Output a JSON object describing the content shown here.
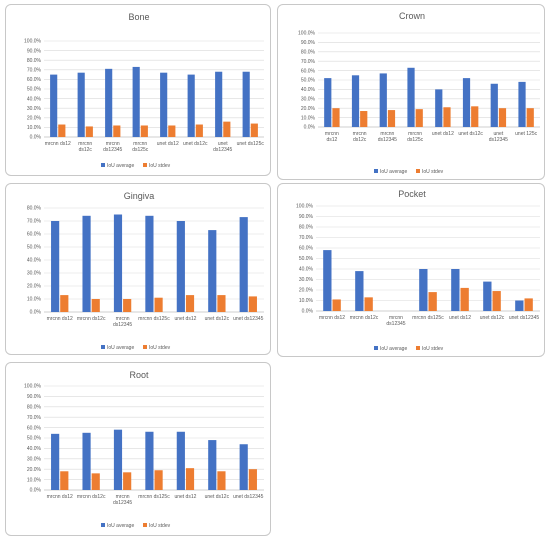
{
  "legend": {
    "avg_label": "IoU average",
    "std_label": "IoU stdev"
  },
  "colors": {
    "avg": "#4472c4",
    "std": "#ed7d31"
  },
  "chart_data": [
    {
      "type": "bar",
      "title": "Bone",
      "categories": [
        [
          "mrcnn ds12"
        ],
        [
          "mrcnn",
          "ds12c"
        ],
        [
          "mrcnn",
          "ds12345"
        ],
        [
          "mrcnn",
          "ds125c"
        ],
        [
          "unet ds12"
        ],
        [
          "unet ds12c"
        ],
        [
          "unet",
          "ds12345"
        ],
        [
          "unet ds125c"
        ]
      ],
      "series": [
        {
          "name": "IoU average",
          "values": [
            65,
            67,
            71,
            73,
            67,
            65,
            68,
            68
          ]
        },
        {
          "name": "IoU stdev",
          "values": [
            13,
            11,
            12,
            12,
            12,
            13,
            16,
            14
          ]
        }
      ],
      "ylim": [
        0,
        100
      ],
      "yticks": [
        "0.0%",
        "10.0%",
        "20.0%",
        "30.0%",
        "40.0%",
        "50.0%",
        "60.0%",
        "70.0%",
        "80.0%",
        "90.0%",
        "100.0%"
      ],
      "grid": true,
      "legend_position": "bottom"
    },
    {
      "type": "bar",
      "title": "Crown",
      "categories": [
        [
          "mrcnn",
          "ds12"
        ],
        [
          "mrcnn",
          "ds12c"
        ],
        [
          "mrcnn",
          "ds12345"
        ],
        [
          "mrcnn",
          "ds125c"
        ],
        [
          "unet ds12"
        ],
        [
          "unet ds12c"
        ],
        [
          "unet",
          "ds12345"
        ],
        [
          "unet 125c"
        ]
      ],
      "series": [
        {
          "name": "IoU average",
          "values": [
            52,
            55,
            57,
            63,
            40,
            52,
            46,
            48
          ]
        },
        {
          "name": "IoU stdev",
          "values": [
            20,
            17,
            18,
            19,
            21,
            22,
            20,
            20
          ]
        }
      ],
      "ylim": [
        0,
        100
      ],
      "yticks": [
        "0.0%",
        "10.0%",
        "20.0%",
        "30.0%",
        "40.0%",
        "50.0%",
        "60.0%",
        "70.0%",
        "80.0%",
        "90.0%",
        "100.0%"
      ],
      "grid": true,
      "legend_position": "bottom"
    },
    {
      "type": "bar",
      "title": "Gingiva",
      "categories": [
        [
          "mrcnn ds12"
        ],
        [
          "mrcnn ds12c"
        ],
        [
          "mrcnn",
          "ds12345"
        ],
        [
          "mrcnn ds125c"
        ],
        [
          "unet ds12"
        ],
        [
          "unet ds12c"
        ],
        [
          "unet ds12345"
        ]
      ],
      "series": [
        {
          "name": "IoU average",
          "values": [
            70,
            74,
            75,
            74,
            70,
            63,
            73
          ]
        },
        {
          "name": "IoU stdev",
          "values": [
            13,
            10,
            10,
            11,
            13,
            13,
            12
          ]
        }
      ],
      "ylim": [
        0,
        80
      ],
      "yticks": [
        "0.0%",
        "10.0%",
        "20.0%",
        "30.0%",
        "40.0%",
        "50.0%",
        "60.0%",
        "70.0%",
        "80.0%"
      ],
      "grid": true,
      "legend_position": "bottom"
    },
    {
      "type": "bar",
      "title": "Pocket",
      "categories": [
        [
          "mrcnn ds12"
        ],
        [
          "mrcnn ds12c"
        ],
        [
          "mrcnn",
          "ds12345"
        ],
        [
          "mrcnn ds125c"
        ],
        [
          "unet ds12"
        ],
        [
          "unet ds12c"
        ],
        [
          "unet ds12345"
        ]
      ],
      "series": [
        {
          "name": "IoU average",
          "values": [
            58,
            38,
            0,
            40,
            40,
            28,
            10
          ]
        },
        {
          "name": "IoU stdev",
          "values": [
            11,
            13,
            0,
            18,
            22,
            19,
            12
          ]
        }
      ],
      "ylim": [
        0,
        100
      ],
      "yticks": [
        "0.0%",
        "10.0%",
        "20.0%",
        "30.0%",
        "40.0%",
        "50.0%",
        "60.0%",
        "70.0%",
        "80.0%",
        "90.0%",
        "100.0%"
      ],
      "grid": true,
      "legend_position": "bottom"
    },
    {
      "type": "bar",
      "title": "Root",
      "categories": [
        [
          "mrcnn ds12"
        ],
        [
          "mrcnn ds12c"
        ],
        [
          "mrcnn",
          "ds12345"
        ],
        [
          "mrcnn ds125c"
        ],
        [
          "unet ds12"
        ],
        [
          "unet ds12c"
        ],
        [
          "unet ds12345"
        ]
      ],
      "series": [
        {
          "name": "IoU average",
          "values": [
            54,
            55,
            58,
            56,
            56,
            48,
            44
          ]
        },
        {
          "name": "IoU stdev",
          "values": [
            18,
            16,
            17,
            19,
            21,
            18,
            20
          ]
        }
      ],
      "ylim": [
        0,
        100
      ],
      "yticks": [
        "0.0%",
        "10.0%",
        "20.0%",
        "30.0%",
        "40.0%",
        "50.0%",
        "60.0%",
        "70.0%",
        "80.0%",
        "90.0%",
        "100.0%"
      ],
      "grid": true,
      "legend_position": "bottom"
    }
  ]
}
